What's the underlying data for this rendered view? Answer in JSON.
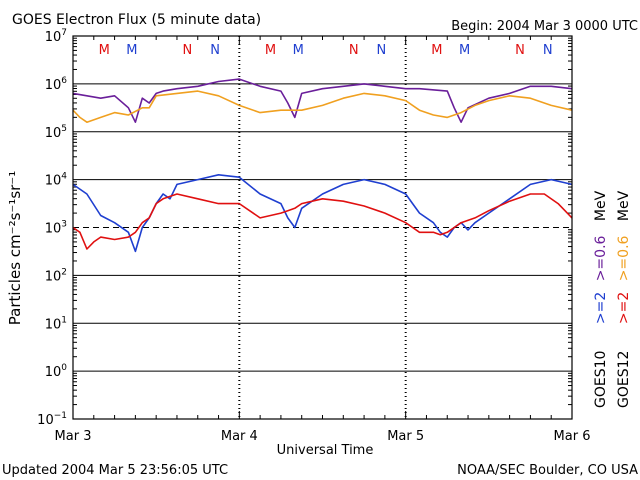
{
  "header": {
    "title": "GOES Electron Flux (5 minute data)",
    "begin": "Begin: 2004 Mar 3 0000 UTC"
  },
  "footer": {
    "updated": "Updated 2004 Mar  5 23:56:05 UTC",
    "credit": "NOAA/SEC Boulder, CO USA"
  },
  "legend": {
    "goes10": {
      "sat": "GOES10",
      "s1": ">=2",
      "s2": ">=0.6",
      "unit": "MeV"
    },
    "goes12": {
      "sat": "GOES12",
      "s1": ">=2",
      "s2": ">=0.6",
      "unit": "MeV"
    }
  },
  "colors": {
    "goes10_ge2": "#1f3fd0",
    "goes10_ge06": "#6a1f9a",
    "goes12_ge2": "#e01010",
    "goes12_ge06": "#f0a020",
    "marker_M": "#e01010",
    "marker_N": "#1f3fd0"
  },
  "chart_data": {
    "type": "line",
    "title": "GOES Electron Flux (5 minute data)",
    "xlabel": "Universal Time",
    "ylabel": "Particles cm⁻²s⁻¹sr⁻¹",
    "xlim": [
      0,
      72
    ],
    "x_unit": "hours since 2004 Mar 3 0000 UTC",
    "yscale": "log",
    "ylim_exp": [
      -1,
      7
    ],
    "ytick_exps": [
      -1,
      0,
      1,
      2,
      3,
      4,
      5,
      6,
      7
    ],
    "xticks": [
      {
        "x": 0,
        "label": "Mar 3"
      },
      {
        "x": 24,
        "label": "Mar 4"
      },
      {
        "x": 48,
        "label": "Mar 5"
      },
      {
        "x": 72,
        "label": "Mar 6"
      }
    ],
    "threshold_exp": 3,
    "markers": [
      {
        "x": 4.5,
        "label": "M",
        "sat": "GOES12"
      },
      {
        "x": 8.5,
        "label": "M",
        "sat": "GOES10"
      },
      {
        "x": 16.5,
        "label": "N",
        "sat": "GOES12"
      },
      {
        "x": 20.5,
        "label": "N",
        "sat": "GOES10"
      },
      {
        "x": 28.5,
        "label": "M",
        "sat": "GOES12"
      },
      {
        "x": 32.5,
        "label": "M",
        "sat": "GOES10"
      },
      {
        "x": 40.5,
        "label": "N",
        "sat": "GOES12"
      },
      {
        "x": 44.5,
        "label": "N",
        "sat": "GOES10"
      },
      {
        "x": 52.5,
        "label": "M",
        "sat": "GOES12"
      },
      {
        "x": 56.5,
        "label": "M",
        "sat": "GOES10"
      },
      {
        "x": 64.5,
        "label": "N",
        "sat": "GOES12"
      },
      {
        "x": 68.5,
        "label": "N",
        "sat": "GOES10"
      }
    ],
    "series": [
      {
        "name": "GOES10 >=0.6 MeV",
        "x": [
          0,
          2,
          4,
          6,
          8,
          9,
          10,
          11,
          12,
          13,
          15,
          18,
          21,
          24,
          27,
          30,
          31,
          32,
          33,
          36,
          39,
          42,
          45,
          48,
          50,
          54,
          55,
          56,
          57,
          60,
          63,
          66,
          69,
          72
        ],
        "log10_y": [
          5.8,
          5.75,
          5.7,
          5.75,
          5.5,
          5.2,
          5.7,
          5.6,
          5.8,
          5.85,
          5.9,
          5.95,
          6.05,
          6.1,
          5.95,
          5.85,
          5.6,
          5.3,
          5.8,
          5.9,
          5.95,
          6.0,
          5.95,
          5.9,
          5.9,
          5.85,
          5.5,
          5.2,
          5.5,
          5.7,
          5.8,
          5.95,
          5.95,
          5.9
        ]
      },
      {
        "name": "GOES12 >=0.6 MeV",
        "x": [
          0,
          1,
          2,
          4,
          6,
          8,
          10,
          11,
          12,
          15,
          18,
          21,
          24,
          27,
          30,
          33,
          36,
          39,
          42,
          45,
          48,
          50,
          52,
          54,
          56,
          58,
          60,
          63,
          66,
          69,
          72
        ],
        "log10_y": [
          5.45,
          5.3,
          5.2,
          5.3,
          5.4,
          5.35,
          5.5,
          5.5,
          5.75,
          5.8,
          5.85,
          5.75,
          5.55,
          5.4,
          5.45,
          5.45,
          5.55,
          5.7,
          5.8,
          5.75,
          5.65,
          5.45,
          5.35,
          5.3,
          5.4,
          5.55,
          5.65,
          5.75,
          5.7,
          5.55,
          5.45
        ]
      },
      {
        "name": "GOES10 >=2 MeV",
        "x": [
          0,
          2,
          4,
          6,
          8,
          9,
          10,
          11,
          12,
          13,
          14,
          15,
          18,
          21,
          24,
          27,
          30,
          31,
          32,
          33,
          36,
          39,
          42,
          45,
          48,
          49,
          50,
          52,
          53,
          54,
          55,
          56,
          57,
          58,
          60,
          63,
          66,
          69,
          72
        ],
        "log10_y": [
          3.9,
          3.7,
          3.25,
          3.1,
          2.9,
          2.5,
          3.0,
          3.2,
          3.5,
          3.7,
          3.6,
          3.9,
          4.0,
          4.1,
          4.05,
          3.7,
          3.5,
          3.2,
          3.0,
          3.4,
          3.7,
          3.9,
          4.0,
          3.9,
          3.7,
          3.5,
          3.3,
          3.1,
          2.9,
          2.8,
          3.0,
          3.1,
          2.95,
          3.1,
          3.3,
          3.6,
          3.9,
          4.0,
          3.9
        ]
      },
      {
        "name": "GOES12 >=2 MeV",
        "x": [
          0,
          1,
          2,
          3,
          4,
          6,
          8,
          9,
          10,
          11,
          12,
          13,
          15,
          18,
          21,
          24,
          27,
          30,
          31,
          32,
          33,
          36,
          39,
          42,
          45,
          48,
          49,
          50,
          52,
          53,
          54,
          55,
          56,
          58,
          60,
          63,
          66,
          68,
          70,
          72
        ],
        "log10_y": [
          3.0,
          2.9,
          2.55,
          2.7,
          2.8,
          2.75,
          2.8,
          2.9,
          3.1,
          3.2,
          3.5,
          3.6,
          3.7,
          3.6,
          3.5,
          3.5,
          3.2,
          3.3,
          3.35,
          3.4,
          3.5,
          3.6,
          3.55,
          3.45,
          3.3,
          3.1,
          3.0,
          2.9,
          2.9,
          2.85,
          2.9,
          3.0,
          3.1,
          3.2,
          3.35,
          3.55,
          3.7,
          3.7,
          3.5,
          3.2
        ]
      }
    ]
  }
}
